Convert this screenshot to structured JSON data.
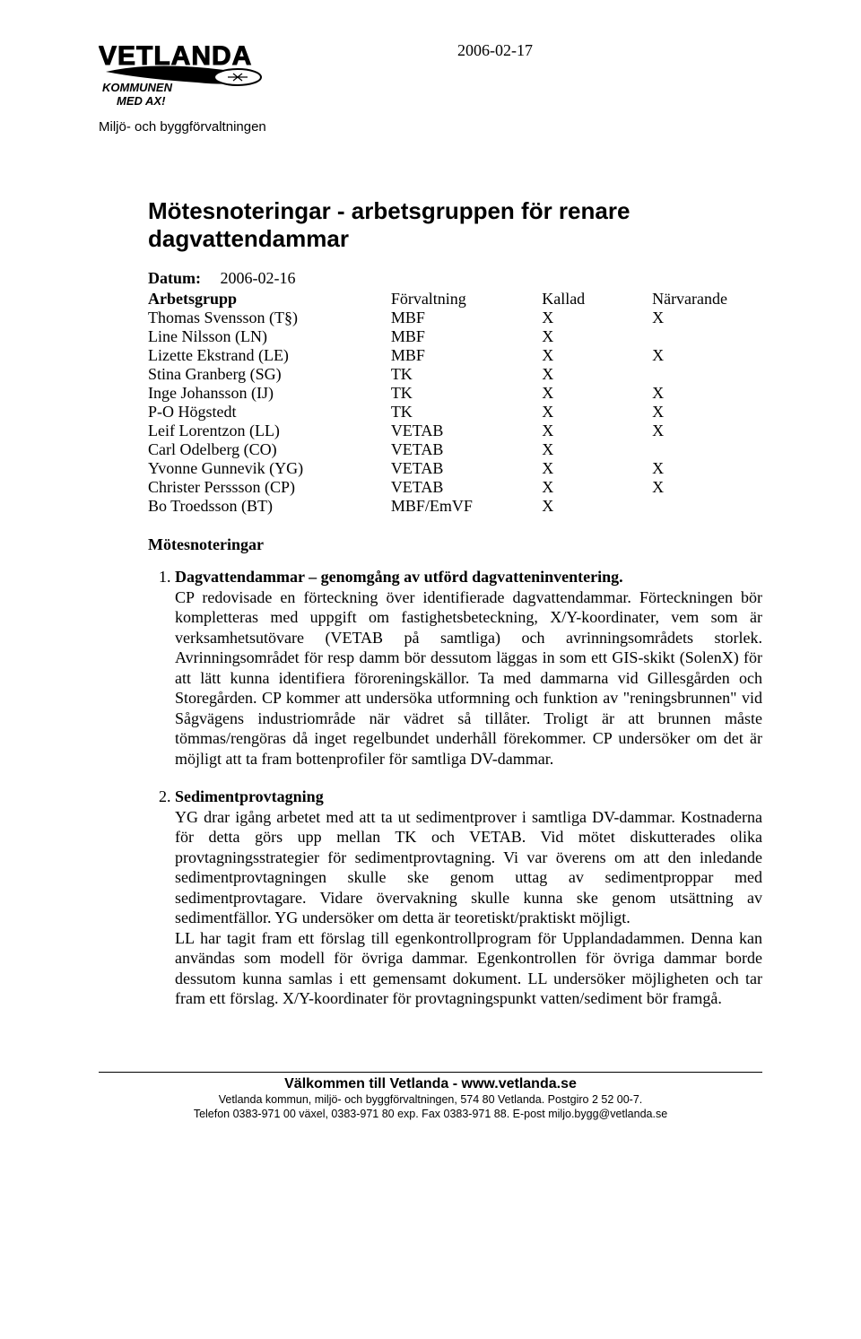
{
  "header": {
    "date_top": "2006-02-17",
    "department": "Miljö- och byggförvaltningen",
    "logo_top": "VETLANDA",
    "logo_sub": "KOMMUNEN MED AX!"
  },
  "title": "Mötesnoteringar - arbetsgruppen för renare dagvattendammar",
  "meta": {
    "datum_label": "Datum:",
    "datum_value": "2006-02-16",
    "table_headers": {
      "c0": "Arbetsgrupp",
      "c1": "Förvaltning",
      "c2": "Kallad",
      "c3": "Närvarande"
    },
    "rows": [
      {
        "name": "Thomas Svensson (T§)",
        "forv": "MBF",
        "k": "X",
        "n": "X"
      },
      {
        "name": "Line Nilsson (LN)",
        "forv": "MBF",
        "k": "X",
        "n": ""
      },
      {
        "name": "Lizette Ekstrand (LE)",
        "forv": "MBF",
        "k": "X",
        "n": "X"
      },
      {
        "name": "Stina Granberg (SG)",
        "forv": "TK",
        "k": "X",
        "n": ""
      },
      {
        "name": "Inge Johansson (IJ)",
        "forv": "TK",
        "k": "X",
        "n": "X"
      },
      {
        "name": "P-O Högstedt",
        "forv": "TK",
        "k": "X",
        "n": "X"
      },
      {
        "name": "Leif Lorentzon (LL)",
        "forv": "VETAB",
        "k": "X",
        "n": "X"
      },
      {
        "name": "Carl Odelberg (CO)",
        "forv": "VETAB",
        "k": "X",
        "n": ""
      },
      {
        "name": "Yvonne Gunnevik (YG)",
        "forv": "VETAB",
        "k": "X",
        "n": "X"
      },
      {
        "name": "Christer Perssson (CP)",
        "forv": "VETAB",
        "k": "X",
        "n": "X"
      },
      {
        "name": "Bo Troedsson (BT)",
        "forv": "MBF/EmVF",
        "k": "X",
        "n": ""
      }
    ]
  },
  "section_heading": "Mötesnoteringar",
  "items": [
    {
      "title": "Dagvattendammar – genomgång av utförd dagvatteninventering.",
      "body": "CP redovisade en förteckning över identifierade dagvattendammar. Förteckningen bör kompletteras med uppgift om fastighetsbeteckning, X/Y-koordinater, vem som är verksamhetsutövare (VETAB på samtliga) och avrinningsområdets storlek. Avrinningsområdet för resp damm bör dessutom läggas in som ett GIS-skikt (SolenX) för att lätt kunna identifiera föroreningskällor. Ta med dammarna vid Gillesgården och Storegården. CP kommer att undersöka utformning och funktion av \"reningsbrunnen\" vid Sågvägens industriområde när vädret så tillåter. Troligt är att brunnen måste tömmas/rengöras då inget regelbundet underhåll förekommer. CP undersöker om det är möjligt att ta fram bottenprofiler för samtliga DV-dammar."
    },
    {
      "title": "Sedimentprovtagning",
      "body": "YG drar igång arbetet med att ta ut sedimentprover i samtliga DV-dammar. Kostnaderna för detta görs upp mellan TK och VETAB. Vid mötet diskutterades olika provtagningsstrategier för sedimentprovtagning. Vi var överens om att den inledande sedimentprovtagningen skulle ske genom uttag av sedimentproppar med sedimentprovtagare. Vidare övervakning skulle kunna ske genom utsättning av sedimentfällor. YG undersöker om detta är teoretiskt/praktiskt möjligt.\n LL har tagit fram ett förslag till egenkontrollprogram för Upplandadammen. Denna kan användas som modell för övriga dammar. Egenkontrollen för övriga dammar borde dessutom kunna samlas i ett gemensamt dokument. LL undersöker möjligheten och tar fram ett förslag. X/Y-koordinater för provtagningspunkt vatten/sediment bör framgå."
    }
  ],
  "footer": {
    "line1": "Välkommen till Vetlanda - www.vetlanda.se",
    "line2": "Vetlanda kommun, miljö- och byggförvaltningen,  574 80 Vetlanda. Postgiro 2 52 00-7.",
    "line3": "Telefon 0383-971 00 växel, 0383-971 80 exp. Fax 0383-971 88. E-post miljo.bygg@vetlanda.se"
  }
}
